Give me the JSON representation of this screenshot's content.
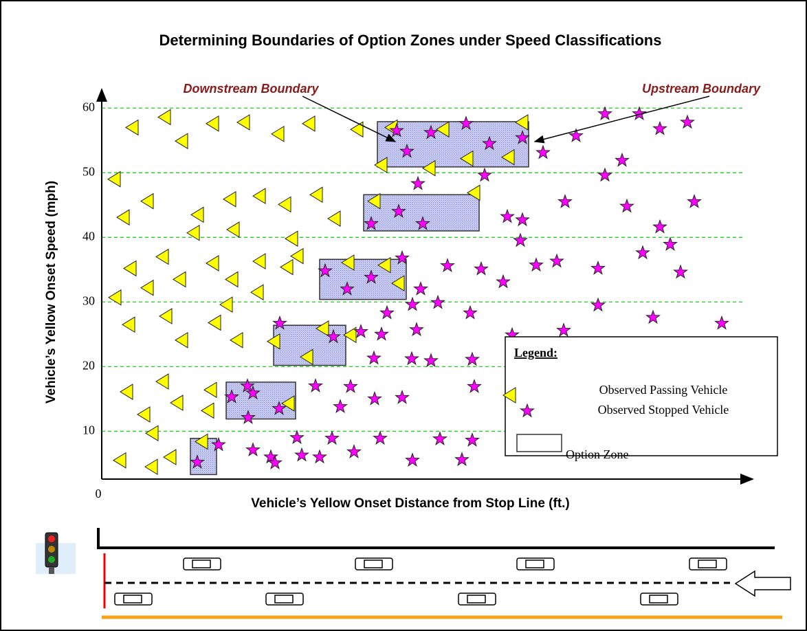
{
  "chart_data": {
    "type": "scatter",
    "title": "Determining Boundaries of Option Zones under Speed Classifications",
    "x_label": "Vehicle’s Yellow Onset Distance from Stop Line (ft.)",
    "y_label": "Vehicle’s Yellow Onset Speed (mph)",
    "annotations": [
      "Downstream Boundary",
      "Upstream Boundary"
    ],
    "xlim": [
      0,
      947
    ],
    "xticks": [
      0
    ],
    "ylim": [
      2.6,
      62.9
    ],
    "yticks": [
      10,
      20,
      30,
      40,
      50,
      60
    ],
    "grid": true,
    "grid_color": "#22cc22",
    "legend_title": "Legend:",
    "legend": "lower right",
    "series": [
      {
        "name": "Observed Passing Vehicle",
        "color": "#ffff00",
        "marker": "triangle-left",
        "x": [
          19,
          45,
          92,
          117,
          162,
          207,
          257,
          302,
          372,
          407,
          32,
          67,
          140,
          187,
          230,
          267,
          313,
          339,
          134,
          192,
          277,
          285,
          20,
          42,
          67,
          89,
          114,
          162,
          190,
          230,
          270,
          182,
          227,
          94,
          117,
          165,
          197,
          251,
          40,
          37,
          89,
          110,
          159,
          155,
          62,
          74,
          27,
          73,
          100,
          146,
          422,
          497,
          612,
          592,
          477,
          532,
          432,
          359,
          362,
          322,
          272,
          299,
          397,
          542,
          412
        ],
        "values": [
          49.0,
          57.0,
          58.6,
          54.9,
          57.6,
          57.8,
          56.0,
          57.6,
          56.7,
          51.2,
          43.1,
          45.6,
          43.5,
          45.9,
          46.4,
          45.1,
          46.6,
          42.9,
          40.7,
          41.2,
          39.8,
          37.1,
          30.7,
          35.2,
          32.2,
          37.0,
          33.5,
          36.0,
          33.5,
          36.3,
          35.4,
          29.6,
          31.5,
          27.8,
          24.1,
          26.8,
          24.1,
          23.9,
          26.5,
          16.1,
          17.7,
          14.4,
          16.4,
          13.2,
          12.6,
          9.7,
          5.5,
          4.5,
          6.0,
          8.4,
          57.0,
          56.7,
          57.8,
          52.4,
          50.7,
          52.2,
          32.9,
          36.1,
          24.9,
          25.9,
          14.3,
          21.5,
          45.6,
          46.9,
          35.7
        ]
      },
      {
        "name": "Observed Stopped Vehicle",
        "color": "#ff00ff",
        "marker": "star",
        "x": [
          429,
          444,
          479,
          530,
          564,
          612,
          642,
          690,
          732,
          782,
          812,
          852,
          757,
          732,
          674,
          612,
          590,
          557,
          460,
          432,
          392,
          467,
          764,
          812,
          862,
          609,
          632,
          662,
          722,
          787,
          827,
          842,
          437,
          503,
          552,
          584,
          464,
          392,
          325,
          357,
          452,
          489,
          536,
          597,
          672,
          722,
          802,
          902,
          415,
          377,
          458,
          407,
          337,
          259,
          311,
          362,
          397,
          437,
          542,
          451,
          479,
          539,
          396,
          212,
          220,
          258,
          213,
          189,
          347,
          284,
          335,
          405,
          492,
          539,
          220,
          291,
          317,
          367,
          452,
          524,
          246,
          252,
          170,
          139
        ],
        "values": [
          56.5,
          53.3,
          56.2,
          57.6,
          54.5,
          55.4,
          53.1,
          55.7,
          59.1,
          59.1,
          56.8,
          57.8,
          51.9,
          49.6,
          45.5,
          42.7,
          43.2,
          49.6,
          48.3,
          44.0,
          42.1,
          42.1,
          44.8,
          41.6,
          45.5,
          39.5,
          35.7,
          36.3,
          35.2,
          37.6,
          38.9,
          34.6,
          36.8,
          35.6,
          35.1,
          33.1,
          32.0,
          33.8,
          34.8,
          32.0,
          29.6,
          29.9,
          28.3,
          24.9,
          25.6,
          29.5,
          27.6,
          26.7,
          28.3,
          25.4,
          25.7,
          25.0,
          24.6,
          26.7,
          17.0,
          16.9,
          15.0,
          15.2,
          16.9,
          21.2,
          20.9,
          21.1,
          21.3,
          17.0,
          15.9,
          13.5,
          12.1,
          15.3,
          13.8,
          9.0,
          8.9,
          8.9,
          8.8,
          8.6,
          7.1,
          6.3,
          6.0,
          6.8,
          5.5,
          5.6,
          6.0,
          5.1,
          7.9,
          5.2
        ]
      }
    ],
    "zones": {
      "name": "Option Zone",
      "color": "#c3c6ee",
      "boxes": [
        {
          "x": [
            129,
            167
          ],
          "y": [
            3.3,
            8.9
          ]
        },
        {
          "x": [
            181,
            282
          ],
          "y": [
            11.9,
            17.6
          ]
        },
        {
          "x": [
            250,
            355
          ],
          "y": [
            20.2,
            26.4
          ]
        },
        {
          "x": [
            317,
            443
          ],
          "y": [
            30.4,
            36.6
          ]
        },
        {
          "x": [
            381,
            549
          ],
          "y": [
            41.0,
            46.6
          ]
        },
        {
          "x": [
            401,
            621
          ],
          "y": [
            50.9,
            57.9
          ]
        }
      ]
    }
  }
}
